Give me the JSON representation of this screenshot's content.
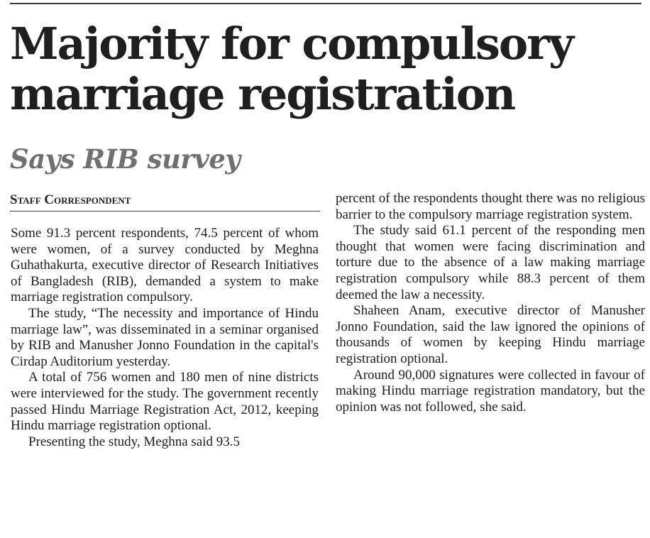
{
  "headline": "Majority for compulsory marriage registration",
  "subhead": "Says RIB survey",
  "byline": "Staff Correspondent",
  "left_column": [
    "Some 91.3 percent respondents, 74.5 percent of whom were women, of a survey conducted by Meghna Guhathakurta, executive director of Research Initiatives of Bangladesh (RIB), demanded a system to make marriage registration compulsory.",
    "The study, “The necessity and importance of Hindu marriage law”, was disseminated in a seminar organised by RIB and Manusher Jonno Foundation in the capital's Cirdap Auditorium yesterday.",
    "A total of 756 women and 180 men of nine districts were interviewed for the study. The government recently passed Hindu Marriage Registration Act, 2012, keeping Hindu marriage registration optional.",
    "Presenting the study, Meghna said 93.5"
  ],
  "right_column": [
    "percent of the respondents thought there was no religious barrier to the compulsory marriage registration system.",
    "The study said 61.1 percent of the responding men thought that women were facing discrimination and torture due to the absence of a law making marriage registration compulsory while 88.3 percent of them deemed the law a necessity.",
    "Shaheen Anam, executive director of Manusher Jonno Foundation, said the law ignored the opinions of thousands of women by keeping Hindu marriage registration optional.",
    "Around 90,000 signatures were collected in favour of making Hindu marriage registration mandatory, but the opinion was not followed, she said."
  ]
}
